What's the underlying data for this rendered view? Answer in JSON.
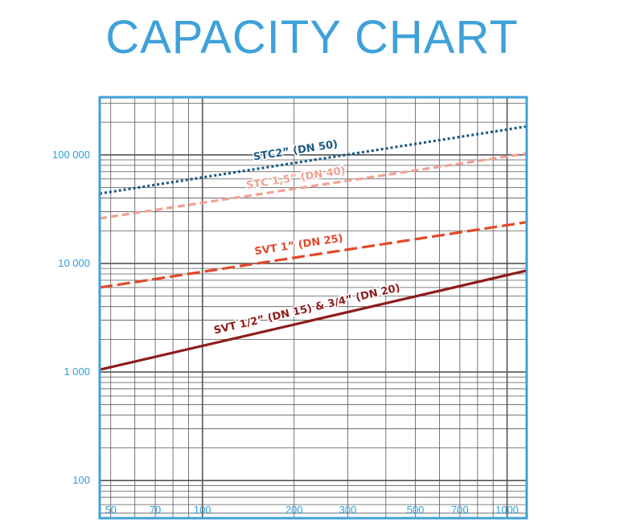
{
  "chart_data": {
    "type": "line",
    "title": "CAPACITY CHART",
    "xlabel": "",
    "ylabel": "",
    "x_scale": "log",
    "y_scale": "log",
    "xlim": [
      46,
      1160
    ],
    "ylim": [
      45,
      340000
    ],
    "grid": true,
    "legend": "none",
    "colors": {
      "frame": "#3fa1d9",
      "grid": "#555555",
      "tick_text": "#2f9fd8"
    },
    "xticks": [
      {
        "value": 50,
        "label": "50"
      },
      {
        "value": 70,
        "label": "70"
      },
      {
        "value": 100,
        "label": "100"
      },
      {
        "value": 200,
        "label": "200"
      },
      {
        "value": 300,
        "label": "300"
      },
      {
        "value": 500,
        "label": "500"
      },
      {
        "value": 700,
        "label": "700"
      },
      {
        "value": 1000,
        "label": "1000"
      }
    ],
    "yticks": [
      {
        "value": 100,
        "label": "100"
      },
      {
        "value": 1000,
        "label": "1 000"
      },
      {
        "value": 10000,
        "label": "10 000"
      },
      {
        "value": 100000,
        "label": "100 000"
      }
    ],
    "series": [
      {
        "name": "STC2” (DN 50)",
        "color": "#1b5a82",
        "dash": "dotted",
        "x": [
          46,
          1160
        ],
        "y": [
          44000,
          183000
        ]
      },
      {
        "name": "STC 1,5” (DN 40)",
        "color": "#f0a192",
        "dash": "dashed",
        "x": [
          46,
          1160
        ],
        "y": [
          26000,
          103000
        ]
      },
      {
        "name": "SVT 1” (DN 25)",
        "color": "#e2482a",
        "dash": "longdash",
        "x": [
          46,
          1160
        ],
        "y": [
          6000,
          24000
        ]
      },
      {
        "name": "SVT 1/2” (DN 15) & 3/4” (DN 20)",
        "color": "#8e1c1c",
        "dash": "solid",
        "x": [
          46,
          1160
        ],
        "y": [
          1050,
          8600
        ]
      }
    ]
  }
}
